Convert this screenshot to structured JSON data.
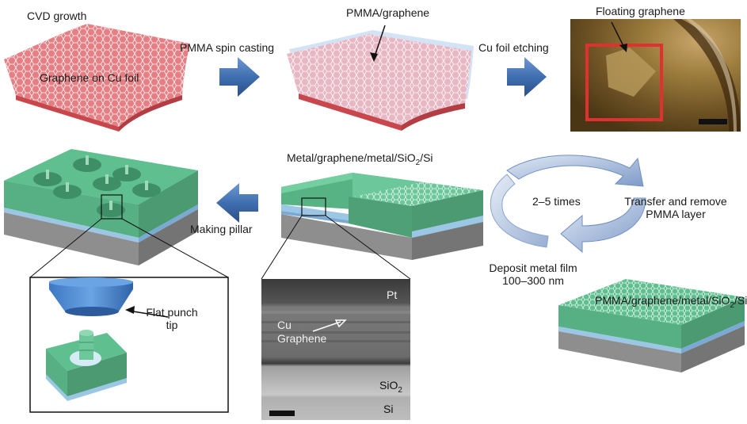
{
  "labels": {
    "cvd_growth": "CVD growth",
    "graphene_on_cu": "Graphene on Cu foil",
    "pmma_spin_casting": "PMMA spin casting",
    "pmma_graphene": "PMMA/graphene",
    "cu_foil_etching": "Cu foil etching",
    "floating_graphene": "Floating graphene",
    "stack_top": "Metal/graphene/metal/SiO",
    "stack_top_sub": "2",
    "stack_top_end": "/Si",
    "making_pillar": "Making pillar",
    "cycle_times": "2–5 times",
    "transfer_line1": "Transfer and remove",
    "transfer_line2": "PMMA layer",
    "deposit_line1": "Deposit metal film",
    "deposit_line2": "100–300 nm",
    "stack_bottom": "PMMA/graphene/metal/SiO",
    "stack_bottom_sub": "2",
    "stack_bottom_end": "/Si",
    "flat_punch_line1": "Flat punch",
    "flat_punch_line2": "tip",
    "tem_pt": "Pt",
    "tem_cu": "Cu",
    "tem_graphene": "Graphene",
    "tem_sio2": "SiO",
    "tem_sio2_sub": "2",
    "tem_si": "Si"
  },
  "colors": {
    "copper": "#d9676a",
    "film_green": "#5fbf8f",
    "substrate_blue": "#a9c9e6",
    "substrate_gray": "#8e8e8e",
    "arrow_blue": "#3f6fb0",
    "box_red": "#e03030",
    "pmma": "#e9dbe6",
    "cycle_arrow": "#9fb4d6"
  },
  "icons": [
    "block-arrow-right-icon",
    "block-arrow-left-icon",
    "cycle-arrows-icon",
    "scale-bar-icon"
  ]
}
